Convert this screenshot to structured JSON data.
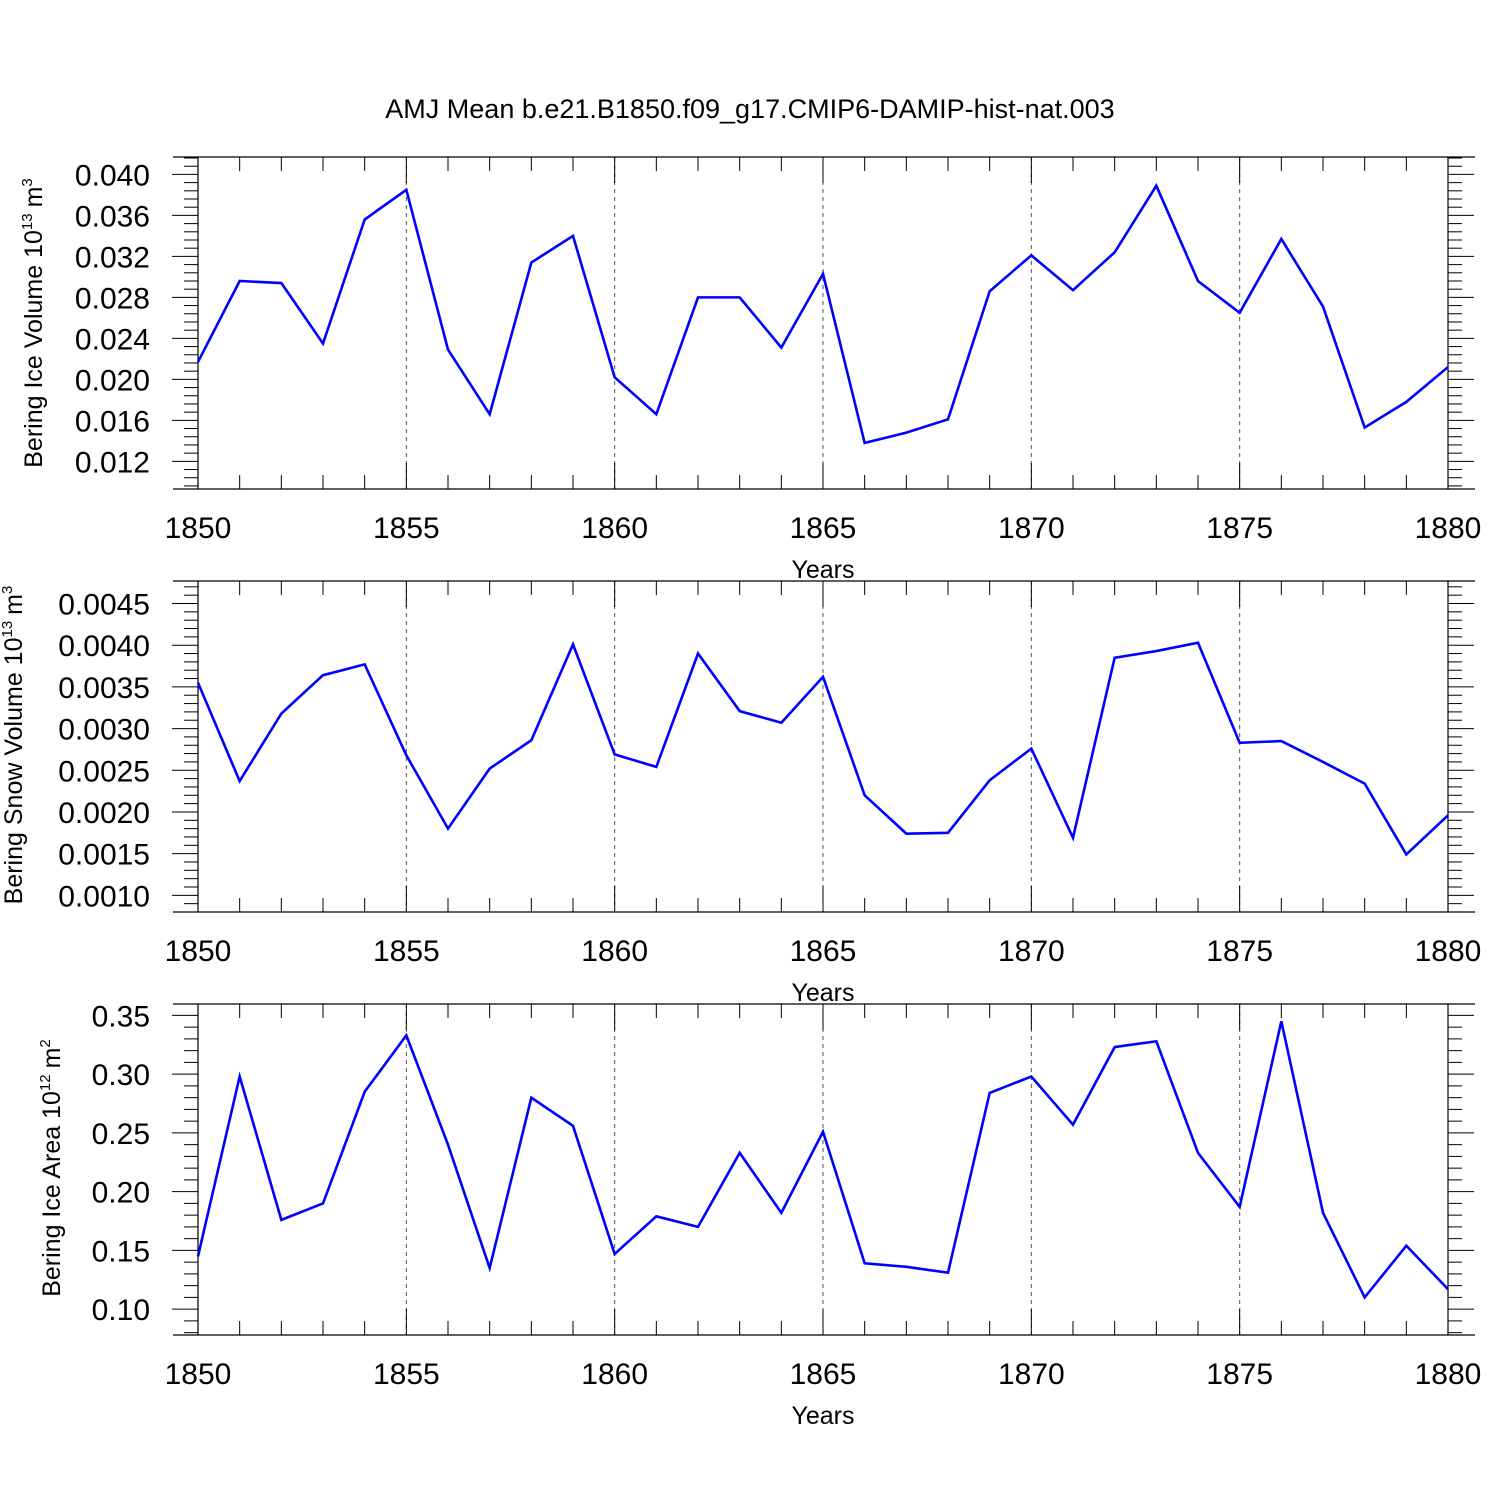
{
  "title": "AMJ Mean b.e21.B1850.f09_g17.CMIP6-DAMIP-hist-nat.003",
  "colors": {
    "series": "#0000ff",
    "axis": "#000000",
    "grid": "#555555"
  },
  "chart_data": [
    {
      "type": "line",
      "xlabel": "Years",
      "ylabel_main": "Bering Ice Volume 10",
      "ylabel_exp": "13",
      "ylabel_unit": "m",
      "ylabel_unit_exp": "3",
      "xlim": [
        1850,
        1880
      ],
      "ylim": [
        0.0093,
        0.0417
      ],
      "x_ticks": [
        "1850",
        "1855",
        "1860",
        "1865",
        "1870",
        "1875",
        "1880"
      ],
      "y_ticks": [
        "0.012",
        "0.016",
        "0.020",
        "0.024",
        "0.028",
        "0.032",
        "0.036",
        "0.040"
      ],
      "y_tick_values": [
        0.012,
        0.016,
        0.02,
        0.024,
        0.028,
        0.032,
        0.036,
        0.04
      ],
      "y_minor_step": 0.0008,
      "grid_x_years": [
        1855,
        1860,
        1865,
        1870,
        1875
      ],
      "x": [
        1850,
        1851,
        1852,
        1853,
        1854,
        1855,
        1856,
        1857,
        1858,
        1859,
        1860,
        1861,
        1862,
        1863,
        1864,
        1865,
        1866,
        1867,
        1868,
        1869,
        1870,
        1871,
        1872,
        1873,
        1874,
        1875,
        1876,
        1877,
        1878,
        1879,
        1880
      ],
      "series": [
        {
          "name": "Bering Ice Volume",
          "values": [
            0.0217,
            0.0296,
            0.0294,
            0.0235,
            0.0356,
            0.0385,
            0.0229,
            0.0166,
            0.0314,
            0.034,
            0.0202,
            0.0166,
            0.028,
            0.028,
            0.0231,
            0.0303,
            0.0138,
            0.0148,
            0.0161,
            0.0286,
            0.0321,
            0.0287,
            0.0324,
            0.0389,
            0.0296,
            0.0265,
            0.0337,
            0.0271,
            0.0153,
            0.0178,
            0.0212
          ]
        }
      ]
    },
    {
      "type": "line",
      "xlabel": "Years",
      "ylabel_main": "Bering Snow Volume 10",
      "ylabel_exp": "13",
      "ylabel_unit": "m",
      "ylabel_unit_exp": "3",
      "xlim": [
        1850,
        1880
      ],
      "ylim": [
        0.0008,
        0.00477
      ],
      "x_ticks": [
        "1850",
        "1855",
        "1860",
        "1865",
        "1870",
        "1875",
        "1880"
      ],
      "y_ticks": [
        "0.0010",
        "0.0015",
        "0.0020",
        "0.0025",
        "0.0030",
        "0.0035",
        "0.0040",
        "0.0045"
      ],
      "y_tick_values": [
        0.001,
        0.0015,
        0.002,
        0.0025,
        0.003,
        0.0035,
        0.004,
        0.0045
      ],
      "y_minor_step": 0.0001,
      "grid_x_years": [
        1855,
        1860,
        1865,
        1870,
        1875
      ],
      "x": [
        1850,
        1851,
        1852,
        1853,
        1854,
        1855,
        1856,
        1857,
        1858,
        1859,
        1860,
        1861,
        1862,
        1863,
        1864,
        1865,
        1866,
        1867,
        1868,
        1869,
        1870,
        1871,
        1872,
        1873,
        1874,
        1875,
        1876,
        1877,
        1878,
        1879,
        1880
      ],
      "series": [
        {
          "name": "Bering Snow Volume",
          "values": [
            0.00355,
            0.00237,
            0.00318,
            0.00364,
            0.00377,
            0.00268,
            0.0018,
            0.00252,
            0.00286,
            0.00401,
            0.00269,
            0.00254,
            0.0039,
            0.00321,
            0.00307,
            0.00362,
            0.0022,
            0.00174,
            0.00175,
            0.00238,
            0.00276,
            0.00169,
            0.00385,
            0.00393,
            0.00403,
            0.00283,
            0.00285,
            0.0026,
            0.00234,
            0.00149,
            0.00196
          ]
        }
      ]
    },
    {
      "type": "line",
      "xlabel": "Years",
      "ylabel_main": "Bering Ice Area 10",
      "ylabel_exp": "12",
      "ylabel_unit": "m",
      "ylabel_unit_exp": "2",
      "xlim": [
        1850,
        1880
      ],
      "ylim": [
        0.078,
        0.3597
      ],
      "x_ticks": [
        "1850",
        "1855",
        "1860",
        "1865",
        "1870",
        "1875",
        "1880"
      ],
      "y_ticks": [
        "0.10",
        "0.15",
        "0.20",
        "0.25",
        "0.30",
        "0.35"
      ],
      "y_tick_values": [
        0.1,
        0.15,
        0.2,
        0.25,
        0.3,
        0.35
      ],
      "y_minor_step": 0.01,
      "grid_x_years": [
        1855,
        1860,
        1865,
        1870,
        1875
      ],
      "x": [
        1850,
        1851,
        1852,
        1853,
        1854,
        1855,
        1856,
        1857,
        1858,
        1859,
        1860,
        1861,
        1862,
        1863,
        1864,
        1865,
        1866,
        1867,
        1868,
        1869,
        1870,
        1871,
        1872,
        1873,
        1874,
        1875,
        1876,
        1877,
        1878,
        1879,
        1880
      ],
      "series": [
        {
          "name": "Bering Ice Area",
          "values": [
            0.145,
            0.298,
            0.176,
            0.19,
            0.285,
            0.333,
            0.24,
            0.135,
            0.28,
            0.256,
            0.147,
            0.179,
            0.17,
            0.233,
            0.182,
            0.251,
            0.139,
            0.136,
            0.131,
            0.284,
            0.298,
            0.257,
            0.323,
            0.328,
            0.233,
            0.187,
            0.345,
            0.182,
            0.11,
            0.154,
            0.117
          ]
        }
      ]
    }
  ]
}
